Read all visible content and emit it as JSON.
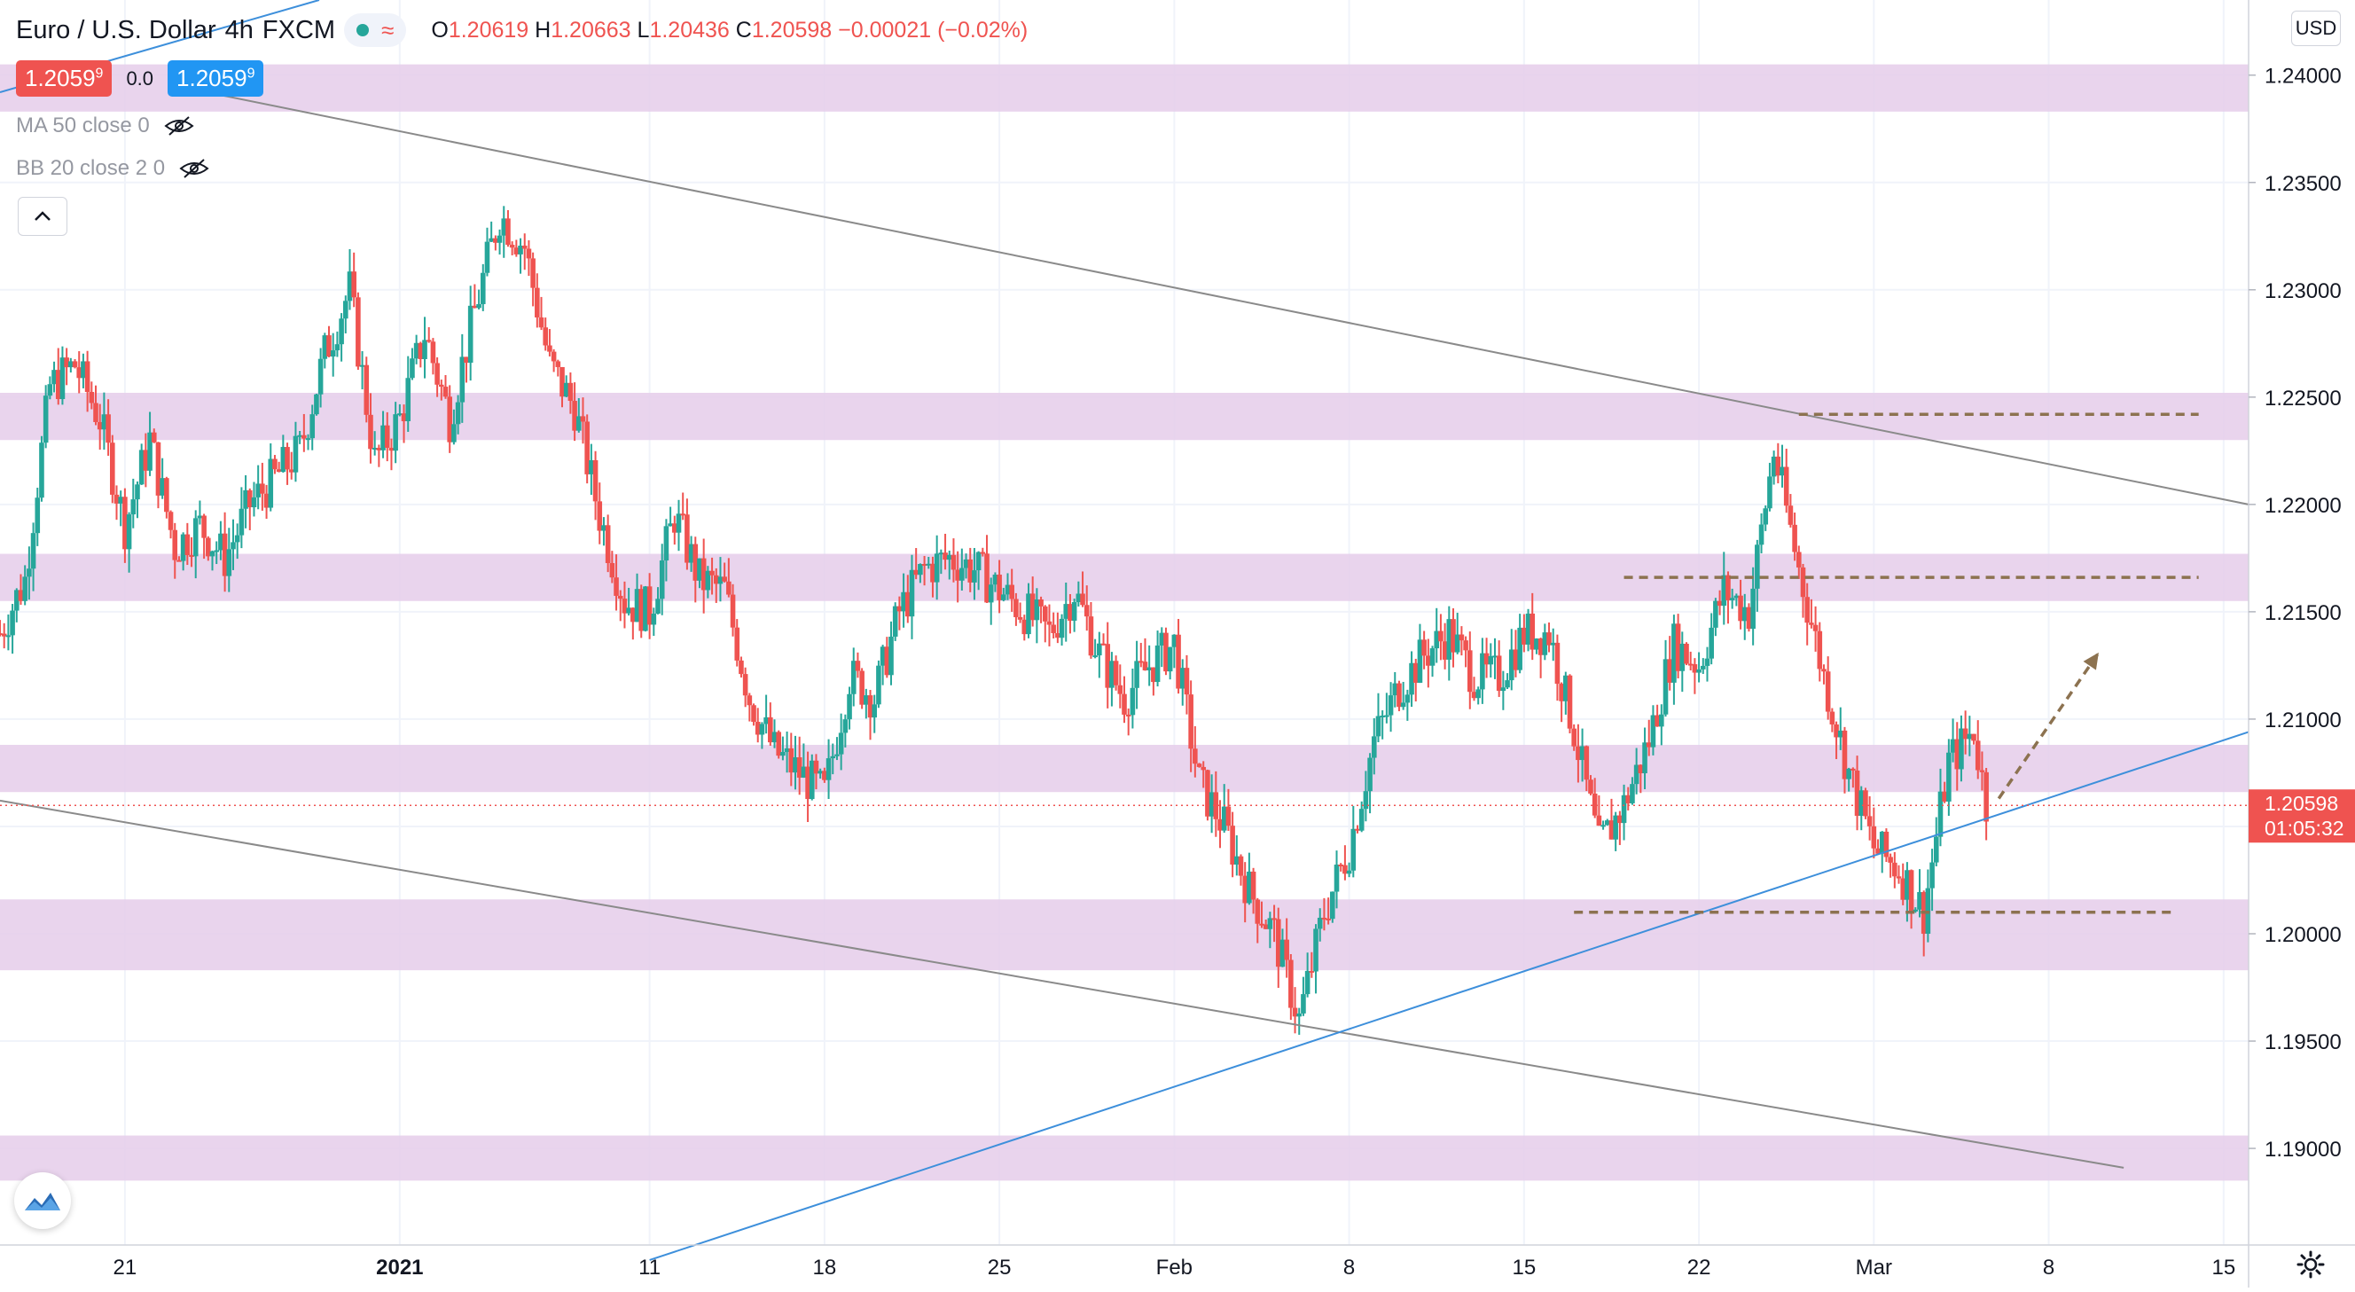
{
  "legend": {
    "symbol": "Euro / U.S. Dollar",
    "interval": "4h",
    "source": "FXCM",
    "open_label": "O",
    "open": "1.20619",
    "high_label": "H",
    "high": "1.20663",
    "low_label": "L",
    "low": "1.20436",
    "close_label": "C",
    "close": "1.20598",
    "change": "−0.00021 (−0.02%)"
  },
  "trade": {
    "sell_main": "1.2059",
    "sell_sup": "9",
    "spread": "0.0",
    "buy_main": "1.2059",
    "buy_sup": "9"
  },
  "indicators": [
    "MA 50 close 0",
    "BB 20 close 2 0"
  ],
  "currency_button": "USD",
  "last_price": {
    "value": "1.20598",
    "countdown": "01:05:32"
  },
  "colors": {
    "up": "#26a69a",
    "down": "#ef5350",
    "zone": "#e5cdea",
    "trend_gray": "#8a8a8a",
    "trend_blue": "#3d8fdb",
    "dashed": "#8c7250",
    "grid": "#f0f3fa",
    "text": "#131722"
  },
  "chart_data": {
    "type": "candlestick",
    "title": "Euro / U.S. Dollar · 4h · FXCM",
    "ylim": [
      1.1855,
      1.2435
    ],
    "y_ticks": [
      "1.24000",
      "1.23500",
      "1.23000",
      "1.22500",
      "1.22000",
      "1.21500",
      "1.21000",
      "1.20500",
      "1.20000",
      "1.19500",
      "1.19000"
    ],
    "x_ticks": [
      {
        "label": "21",
        "date": "2020-12-21",
        "bold": false
      },
      {
        "label": "2021",
        "date": "2021-01-01",
        "bold": true
      },
      {
        "label": "11",
        "date": "2021-01-11",
        "bold": false
      },
      {
        "label": "18",
        "date": "2021-01-18",
        "bold": false
      },
      {
        "label": "25",
        "date": "2021-01-25",
        "bold": false
      },
      {
        "label": "Feb",
        "date": "2021-02-01",
        "bold": false
      },
      {
        "label": "8",
        "date": "2021-02-08",
        "bold": false
      },
      {
        "label": "15",
        "date": "2021-02-15",
        "bold": false
      },
      {
        "label": "22",
        "date": "2021-02-22",
        "bold": false
      },
      {
        "label": "Mar",
        "date": "2021-03-01",
        "bold": false
      },
      {
        "label": "8",
        "date": "2021-03-08",
        "bold": false
      },
      {
        "label": "15",
        "date": "2021-03-15",
        "bold": false
      }
    ],
    "date_range": [
      "2020-12-16",
      "2021-03-16"
    ],
    "price_path": [
      [
        "2020-12-16",
        1.214
      ],
      [
        "2020-12-17",
        1.2165
      ],
      [
        "2020-12-18",
        1.2255
      ],
      [
        "2020-12-19",
        1.2265
      ],
      [
        "2020-12-20",
        1.224
      ],
      [
        "2020-12-21",
        1.219
      ],
      [
        "2020-12-22",
        1.223
      ],
      [
        "2020-12-23",
        1.218
      ],
      [
        "2020-12-24",
        1.219
      ],
      [
        "2020-12-25",
        1.2175
      ],
      [
        "2020-12-26",
        1.22
      ],
      [
        "2020-12-28",
        1.2225
      ],
      [
        "2020-12-29",
        1.227
      ],
      [
        "2020-12-30",
        1.23
      ],
      [
        "2020-12-31",
        1.222
      ],
      [
        "2021-01-01",
        1.224
      ],
      [
        "2021-01-02",
        1.228
      ],
      [
        "2021-01-03",
        1.224
      ],
      [
        "2021-01-04",
        1.229
      ],
      [
        "2021-01-05",
        1.2335
      ],
      [
        "2021-01-06",
        1.232
      ],
      [
        "2021-01-07",
        1.2265
      ],
      [
        "2021-01-08",
        1.2245
      ],
      [
        "2021-01-09",
        1.2195
      ],
      [
        "2021-01-10",
        1.2155
      ],
      [
        "2021-01-11",
        1.215
      ],
      [
        "2021-01-12",
        1.2195
      ],
      [
        "2021-01-13",
        1.2165
      ],
      [
        "2021-01-14",
        1.216
      ],
      [
        "2021-01-15",
        1.211
      ],
      [
        "2021-01-16",
        1.2085
      ],
      [
        "2021-01-17",
        1.2075
      ],
      [
        "2021-01-18",
        1.2065
      ],
      [
        "2021-01-19",
        1.212
      ],
      [
        "2021-01-20",
        1.211
      ],
      [
        "2021-01-21",
        1.215
      ],
      [
        "2021-01-22",
        1.217
      ],
      [
        "2021-01-23",
        1.2175
      ],
      [
        "2021-01-24",
        1.217
      ],
      [
        "2021-01-25",
        1.216
      ],
      [
        "2021-01-26",
        1.215
      ],
      [
        "2021-01-27",
        1.214
      ],
      [
        "2021-01-28",
        1.216
      ],
      [
        "2021-01-29",
        1.213
      ],
      [
        "2021-01-30",
        1.211
      ],
      [
        "2021-01-31",
        1.2125
      ],
      [
        "2021-02-01",
        1.2135
      ],
      [
        "2021-02-02",
        1.207
      ],
      [
        "2021-02-03",
        1.205
      ],
      [
        "2021-02-04",
        1.202
      ],
      [
        "2021-02-05",
        1.2
      ],
      [
        "2021-02-06",
        1.196
      ],
      [
        "2021-02-07",
        1.201
      ],
      [
        "2021-02-08",
        1.204
      ],
      [
        "2021-02-09",
        1.209
      ],
      [
        "2021-02-10",
        1.2115
      ],
      [
        "2021-02-11",
        1.213
      ],
      [
        "2021-02-12",
        1.214
      ],
      [
        "2021-02-13",
        1.212
      ],
      [
        "2021-02-14",
        1.212
      ],
      [
        "2021-02-15",
        1.214
      ],
      [
        "2021-02-16",
        1.214
      ],
      [
        "2021-02-17",
        1.2095
      ],
      [
        "2021-02-18",
        1.204
      ],
      [
        "2021-02-19",
        1.206
      ],
      [
        "2021-02-20",
        1.209
      ],
      [
        "2021-02-21",
        1.2135
      ],
      [
        "2021-02-22",
        1.2125
      ],
      [
        "2021-02-23",
        1.216
      ],
      [
        "2021-02-24",
        1.215
      ],
      [
        "2021-02-25",
        1.2225
      ],
      [
        "2021-02-26",
        1.217
      ],
      [
        "2021-02-27",
        1.212
      ],
      [
        "2021-02-28",
        1.2075
      ],
      [
        "2021-03-01",
        1.204
      ],
      [
        "2021-03-02",
        1.203
      ],
      [
        "2021-03-03",
        1.201
      ],
      [
        "2021-03-04",
        1.208
      ],
      [
        "2021-03-05",
        1.2095
      ],
      [
        "2021-03-05.5",
        1.206
      ]
    ],
    "zones": [
      [
        1.2383,
        1.2405
      ],
      [
        1.223,
        1.2252
      ],
      [
        1.2155,
        1.2177
      ],
      [
        1.2066,
        1.2088
      ],
      [
        1.1983,
        1.2016
      ],
      [
        1.1885,
        1.1906
      ]
    ],
    "trendlines": [
      {
        "name": "upper-channel",
        "color": "gray",
        "from": [
          "2020-12-23",
          1.2395
        ],
        "to": [
          "2021-03-16",
          1.22
        ]
      },
      {
        "name": "lower-channel",
        "color": "gray",
        "from": [
          "2020-12-16",
          1.2062
        ],
        "to": [
          "2021-03-11",
          1.1891
        ]
      },
      {
        "name": "rising-support",
        "color": "blue",
        "from": [
          "2021-01-11",
          1.1848
        ],
        "to": [
          "2021-03-16",
          1.2094
        ]
      }
    ],
    "dashed_levels": [
      {
        "y": 1.2242,
        "from": "2021-02-26",
        "to": "2021-03-14"
      },
      {
        "y": 1.2166,
        "from": "2021-02-19",
        "to": "2021-03-14"
      },
      {
        "y": 1.201,
        "from": "2021-02-17",
        "to": "2021-03-13"
      }
    ],
    "arrow": {
      "from": [
        "2021-03-06",
        1.2063
      ],
      "to": [
        "2021-03-10",
        1.2131
      ]
    },
    "last": 1.20598
  }
}
